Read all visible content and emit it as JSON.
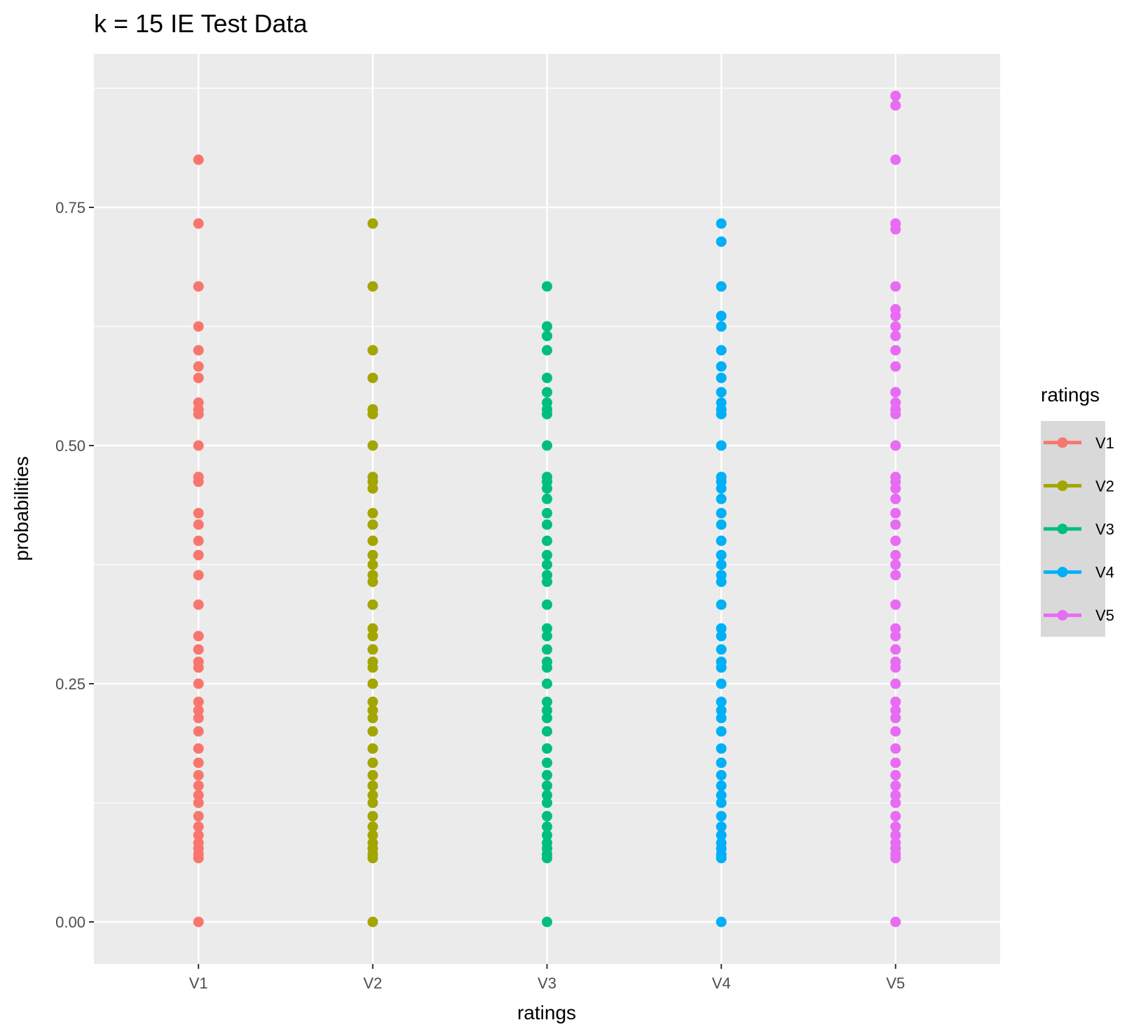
{
  "chart_data": {
    "type": "scatter",
    "title": "k = 15 IE Test Data",
    "xlabel": "ratings",
    "ylabel": "probabilities",
    "categories": [
      "V1",
      "V2",
      "V3",
      "V4",
      "V5"
    ],
    "ylim": [
      -0.045,
      0.895
    ],
    "yticks": [
      0.0,
      0.25,
      0.5,
      0.75
    ],
    "ytick_labels": [
      "0.00",
      "0.25",
      "0.50",
      "0.75"
    ],
    "grid": true,
    "legend": {
      "title": "ratings",
      "position": "right"
    },
    "series": [
      {
        "name": "V1",
        "color": "#F8766D",
        "values": [
          0,
          0.067,
          0.071,
          0.077,
          0.083,
          0.091,
          0.1,
          0.111,
          0.125,
          0.133,
          0.143,
          0.154,
          0.167,
          0.182,
          0.2,
          0.214,
          0.222,
          0.231,
          0.25,
          0.267,
          0.273,
          0.286,
          0.3,
          0.333,
          0.364,
          0.385,
          0.4,
          0.417,
          0.429,
          0.462,
          0.467,
          0.5,
          0.533,
          0.538,
          0.545,
          0.571,
          0.583,
          0.6,
          0.625,
          0.667,
          0.733,
          0.8
        ]
      },
      {
        "name": "V2",
        "color": "#A3A500",
        "values": [
          0,
          0.067,
          0.071,
          0.077,
          0.083,
          0.091,
          0.1,
          0.111,
          0.125,
          0.133,
          0.143,
          0.154,
          0.167,
          0.182,
          0.2,
          0.214,
          0.222,
          0.231,
          0.25,
          0.267,
          0.273,
          0.286,
          0.3,
          0.308,
          0.333,
          0.357,
          0.364,
          0.375,
          0.385,
          0.4,
          0.417,
          0.429,
          0.455,
          0.462,
          0.467,
          0.5,
          0.533,
          0.538,
          0.571,
          0.6,
          0.667,
          0.733
        ]
      },
      {
        "name": "V3",
        "color": "#00BF7D",
        "values": [
          0,
          0.067,
          0.071,
          0.077,
          0.083,
          0.091,
          0.1,
          0.111,
          0.125,
          0.133,
          0.143,
          0.154,
          0.167,
          0.182,
          0.2,
          0.214,
          0.222,
          0.231,
          0.25,
          0.267,
          0.273,
          0.286,
          0.3,
          0.308,
          0.333,
          0.357,
          0.364,
          0.375,
          0.385,
          0.4,
          0.417,
          0.429,
          0.444,
          0.455,
          0.462,
          0.467,
          0.5,
          0.533,
          0.538,
          0.545,
          0.556,
          0.571,
          0.6,
          0.615,
          0.625,
          0.667
        ]
      },
      {
        "name": "V4",
        "color": "#00B0F6",
        "values": [
          0,
          0.067,
          0.071,
          0.077,
          0.083,
          0.091,
          0.1,
          0.111,
          0.125,
          0.133,
          0.143,
          0.154,
          0.167,
          0.182,
          0.2,
          0.214,
          0.222,
          0.231,
          0.25,
          0.267,
          0.273,
          0.286,
          0.3,
          0.308,
          0.333,
          0.357,
          0.364,
          0.375,
          0.385,
          0.4,
          0.417,
          0.429,
          0.444,
          0.455,
          0.462,
          0.467,
          0.5,
          0.533,
          0.538,
          0.545,
          0.556,
          0.571,
          0.583,
          0.6,
          0.625,
          0.636,
          0.667,
          0.714,
          0.733
        ]
      },
      {
        "name": "V5",
        "color": "#E76BF3",
        "values": [
          0,
          0.067,
          0.071,
          0.077,
          0.083,
          0.091,
          0.1,
          0.111,
          0.125,
          0.133,
          0.143,
          0.154,
          0.167,
          0.182,
          0.2,
          0.214,
          0.222,
          0.231,
          0.25,
          0.267,
          0.273,
          0.286,
          0.3,
          0.308,
          0.333,
          0.364,
          0.375,
          0.385,
          0.4,
          0.417,
          0.429,
          0.444,
          0.455,
          0.462,
          0.467,
          0.5,
          0.533,
          0.538,
          0.545,
          0.556,
          0.583,
          0.6,
          0.615,
          0.625,
          0.636,
          0.643,
          0.667,
          0.727,
          0.733,
          0.8,
          0.857,
          0.867
        ]
      }
    ]
  }
}
